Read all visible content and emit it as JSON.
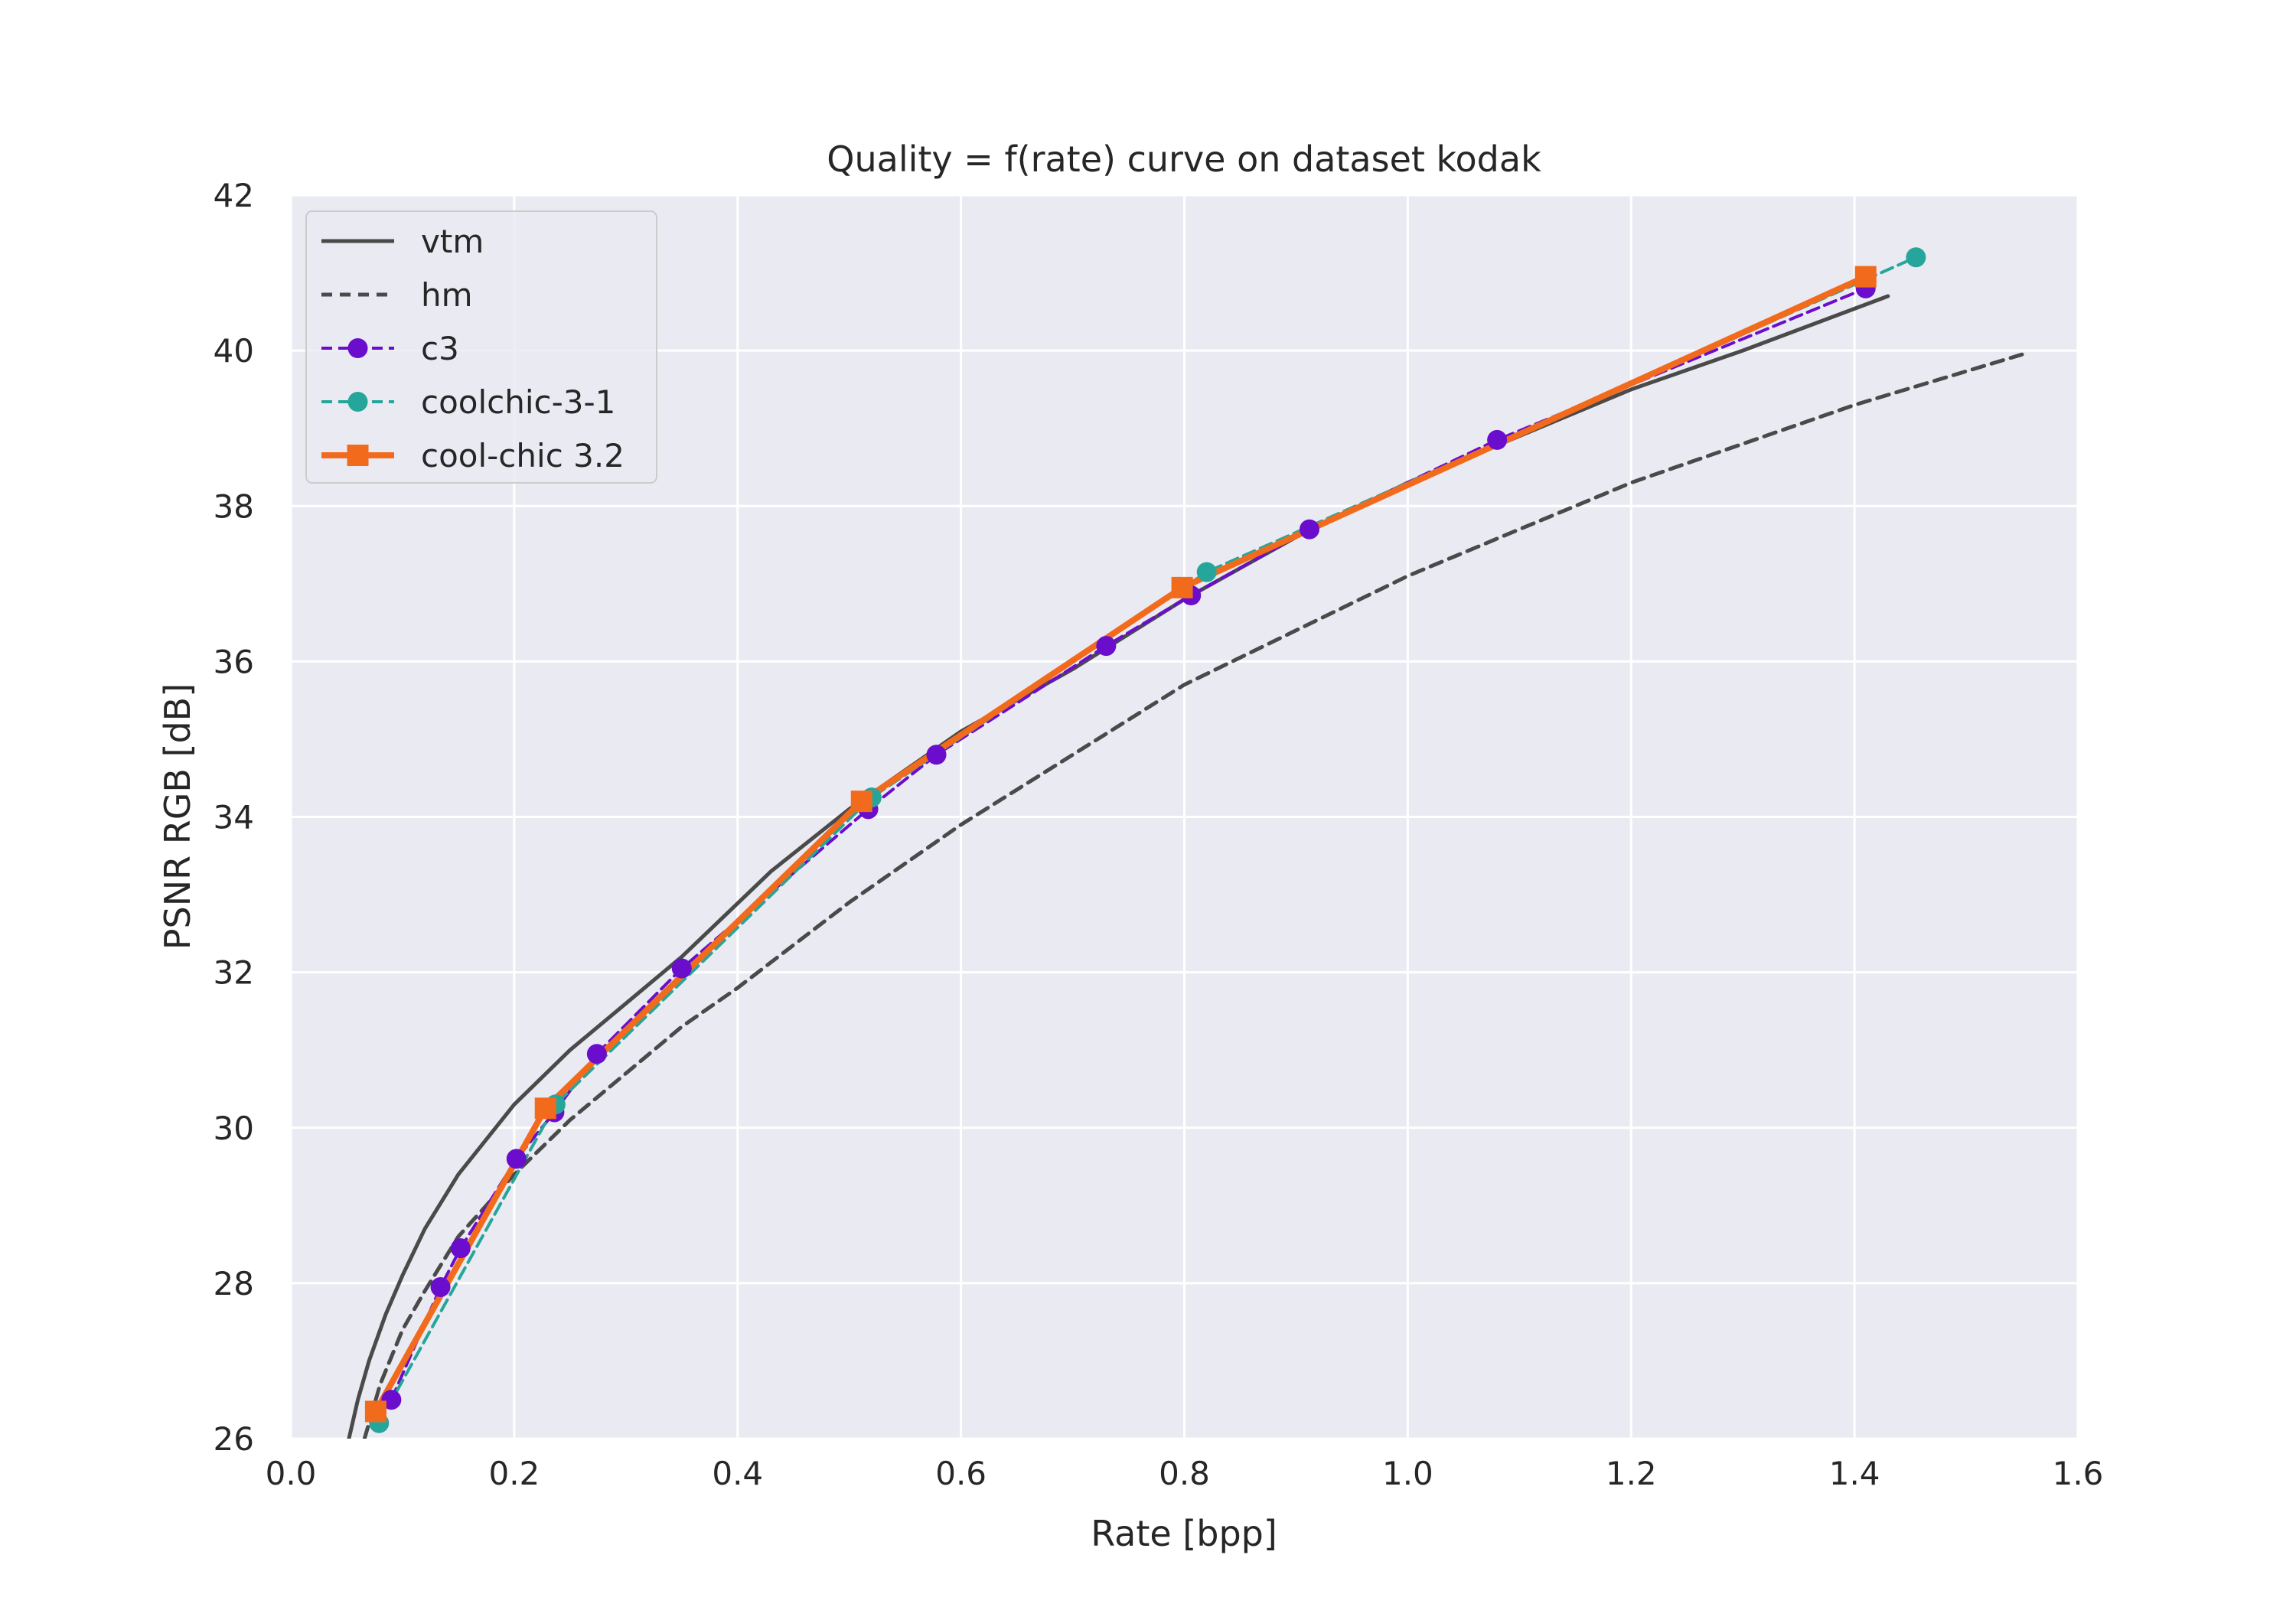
{
  "colors": {
    "plot_bg": "#eaeaf2",
    "grid": "#ffffff",
    "vtm": "#4a4a4a",
    "hm": "#4a4a4a",
    "c3": "#6a0dcc",
    "coolchic_3_1": "#26a69a",
    "coolchic_3_2": "#f26b1d"
  },
  "chart_data": {
    "type": "line",
    "title": "Quality = f(rate) curve on dataset kodak",
    "xlabel": "Rate [bpp]",
    "ylabel": "PSNR RGB [dB]",
    "xlim": [
      0.0,
      1.6
    ],
    "ylim": [
      26,
      42
    ],
    "grid": true,
    "legend_position": "top-left",
    "xticks": [
      "0.0",
      "0.2",
      "0.4",
      "0.6",
      "0.8",
      "1.0",
      "1.2",
      "1.4",
      "1.6"
    ],
    "yticks": [
      "26",
      "28",
      "30",
      "32",
      "34",
      "36",
      "38",
      "40",
      "42"
    ],
    "series": [
      {
        "name": "vtm",
        "style": "solid",
        "marker": "none",
        "x": [
          0.052,
          0.06,
          0.07,
          0.085,
          0.1,
          0.12,
          0.15,
          0.2,
          0.25,
          0.3,
          0.35,
          0.43,
          0.5,
          0.6,
          0.7,
          0.8,
          0.9,
          1.0,
          1.1,
          1.2,
          1.3,
          1.43
        ],
        "y": [
          26.0,
          26.5,
          27.0,
          27.6,
          28.1,
          28.7,
          29.4,
          30.3,
          31.0,
          31.6,
          32.2,
          33.3,
          34.1,
          35.1,
          35.9,
          36.8,
          37.6,
          38.3,
          38.9,
          39.5,
          40.0,
          40.7
        ]
      },
      {
        "name": "hm",
        "style": "dashed",
        "marker": "none",
        "x": [
          0.066,
          0.08,
          0.1,
          0.12,
          0.15,
          0.2,
          0.25,
          0.3,
          0.35,
          0.4,
          0.5,
          0.6,
          0.7,
          0.8,
          0.9,
          1.0,
          1.1,
          1.2,
          1.3,
          1.4,
          1.55
        ],
        "y": [
          26.0,
          26.7,
          27.4,
          27.9,
          28.6,
          29.4,
          30.1,
          30.7,
          31.3,
          31.8,
          32.9,
          33.9,
          34.8,
          35.7,
          36.4,
          37.1,
          37.7,
          38.3,
          38.8,
          39.3,
          39.95
        ]
      },
      {
        "name": "c3",
        "style": "dashed",
        "marker": "circle",
        "x": [
          0.09,
          0.134,
          0.152,
          0.202,
          0.236,
          0.274,
          0.35,
          0.517,
          0.578,
          0.73,
          0.806,
          0.912,
          1.08,
          1.41
        ],
        "y": [
          26.5,
          27.95,
          28.45,
          29.6,
          30.2,
          30.95,
          32.05,
          34.1,
          34.8,
          36.2,
          36.85,
          37.7,
          38.85,
          40.8
        ]
      },
      {
        "name": "coolchic-3-1",
        "style": "dashed",
        "marker": "circle",
        "x": [
          0.079,
          0.237,
          0.52,
          0.82,
          1.455
        ],
        "y": [
          26.2,
          30.3,
          34.25,
          37.15,
          41.2
        ]
      },
      {
        "name": "cool-chic 3.2",
        "style": "solid",
        "marker": "square",
        "x": [
          0.076,
          0.228,
          0.511,
          0.798,
          1.41
        ],
        "y": [
          26.35,
          30.25,
          34.2,
          36.95,
          40.95
        ]
      }
    ]
  }
}
